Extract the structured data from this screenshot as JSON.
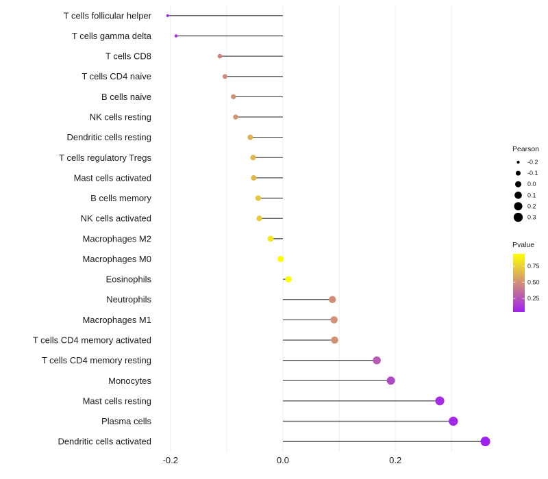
{
  "chart_data": {
    "type": "lollipop",
    "orientation": "horizontal",
    "title": "",
    "xlabel": "",
    "ylabel": "",
    "x_axis": {
      "tick_values": [
        -0.2,
        0.0,
        0.2
      ],
      "tick_labels": [
        "-0.2",
        "0.0",
        "0.2"
      ],
      "gridline_values": [
        -0.2,
        -0.1,
        0.0,
        0.1,
        0.2,
        0.3
      ],
      "limits": [
        -0.21,
        0.39
      ]
    },
    "rows": [
      {
        "label": "T cells follicular helper",
        "pearson": -0.205,
        "pvalue": 0.09
      },
      {
        "label": "T cells gamma delta",
        "pearson": -0.19,
        "pvalue": 0.13
      },
      {
        "label": "T cells CD8",
        "pearson": -0.112,
        "pvalue": 0.46
      },
      {
        "label": "T cells CD4 naive",
        "pearson": -0.103,
        "pvalue": 0.48
      },
      {
        "label": "B cells naive",
        "pearson": -0.088,
        "pvalue": 0.5
      },
      {
        "label": "NK cells resting",
        "pearson": -0.084,
        "pvalue": 0.51
      },
      {
        "label": "Dendritic cells resting",
        "pearson": -0.058,
        "pvalue": 0.63
      },
      {
        "label": "T cells regulatory  Tregs",
        "pearson": -0.053,
        "pvalue": 0.65
      },
      {
        "label": "Mast cells activated",
        "pearson": -0.052,
        "pvalue": 0.66
      },
      {
        "label": "B cells memory",
        "pearson": -0.044,
        "pvalue": 0.72
      },
      {
        "label": "NK cells activated",
        "pearson": -0.042,
        "pvalue": 0.73
      },
      {
        "label": "Macrophages M2",
        "pearson": -0.022,
        "pvalue": 0.84
      },
      {
        "label": "Macrophages M0",
        "pearson": -0.004,
        "pvalue": 0.92
      },
      {
        "label": "Eosinophils",
        "pearson": 0.01,
        "pvalue": 0.94
      },
      {
        "label": "Neutrophils",
        "pearson": 0.088,
        "pvalue": 0.49
      },
      {
        "label": "Macrophages M1",
        "pearson": 0.091,
        "pvalue": 0.5
      },
      {
        "label": "T cells CD4 memory activated",
        "pearson": 0.092,
        "pvalue": 0.5
      },
      {
        "label": "T cells CD4 memory resting",
        "pearson": 0.167,
        "pvalue": 0.27
      },
      {
        "label": "Monocytes",
        "pearson": 0.192,
        "pvalue": 0.2
      },
      {
        "label": "Mast cells resting",
        "pearson": 0.279,
        "pvalue": 0.09
      },
      {
        "label": "Plasma cells",
        "pearson": 0.303,
        "pvalue": 0.07
      },
      {
        "label": "Dendritic cells activated",
        "pearson": 0.36,
        "pvalue": 0.05
      }
    ],
    "legend": {
      "size": {
        "title": "Pearson",
        "entry_values": [
          -0.2,
          -0.1,
          0.0,
          0.1,
          0.2,
          0.3
        ],
        "entry_labels": [
          "-0.2",
          "-0.1",
          "0.0",
          "0.1",
          "0.2",
          "0.3"
        ],
        "dot_color": "#000000"
      },
      "color": {
        "title": "Pvalue",
        "tick_values": [
          0.75,
          0.5,
          0.25
        ],
        "tick_labels": [
          "0.75",
          "0.50",
          "0.25"
        ],
        "gradient_low": "#A020F0",
        "gradient_high": "#FFFF00"
      }
    },
    "colors": {
      "stem": "#4d4d4d",
      "grid": "#ececec",
      "text": "#1a1a1a"
    }
  }
}
